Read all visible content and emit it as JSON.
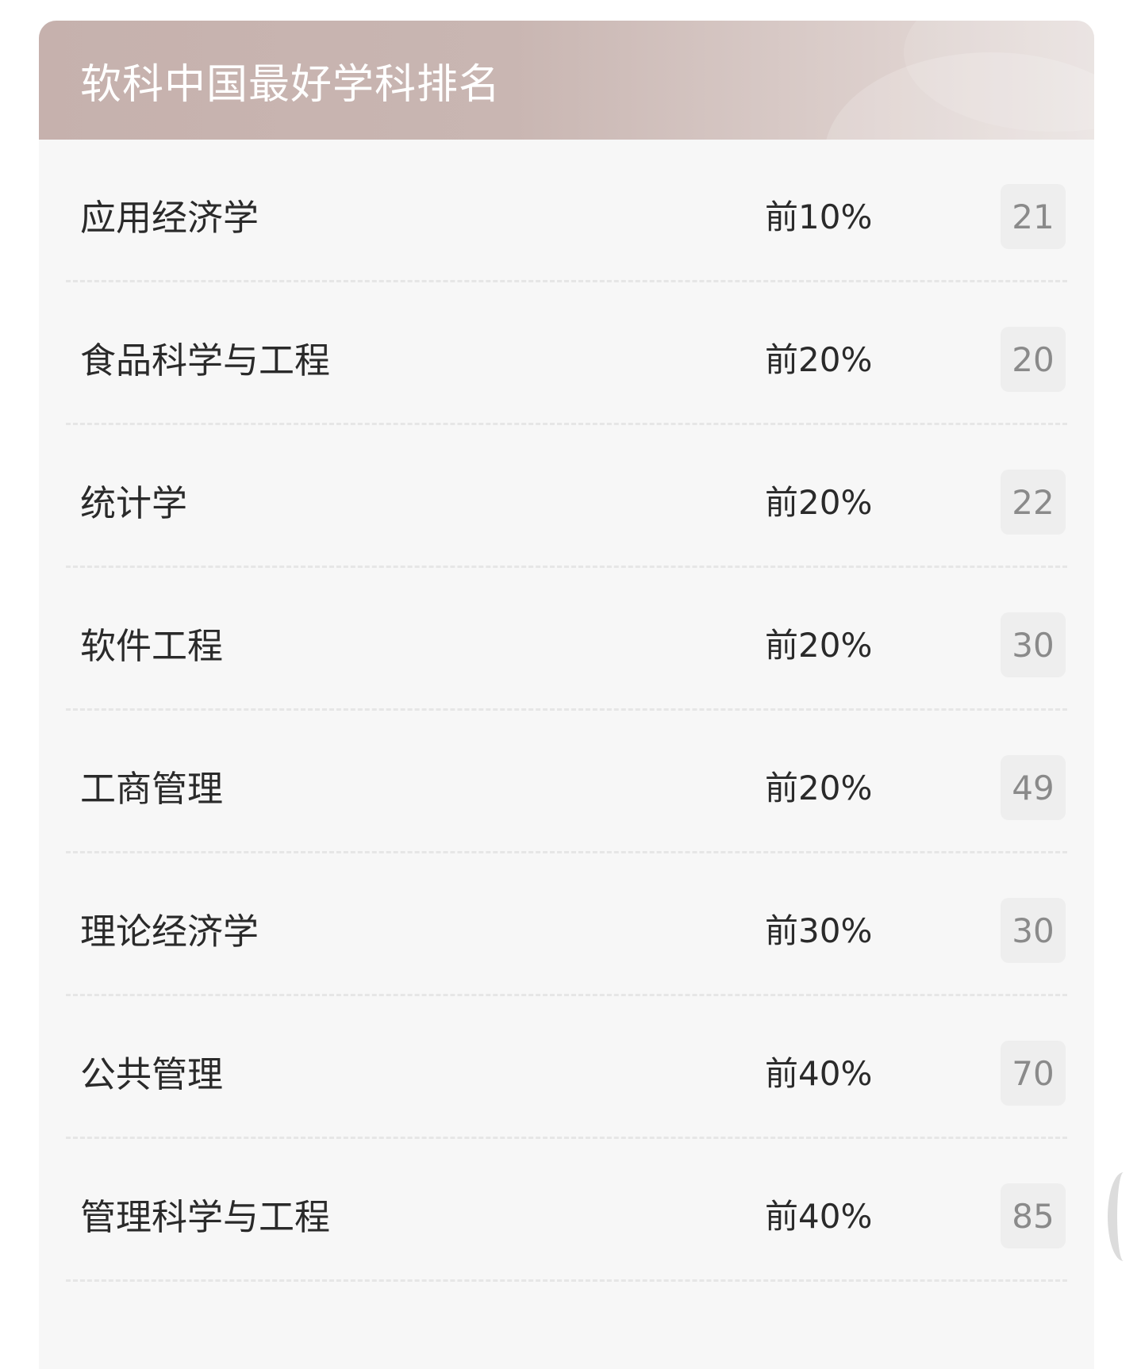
{
  "header": {
    "title": "软科中国最好学科排名"
  },
  "rows": [
    {
      "name": "应用经济学",
      "tier": "前10%",
      "rank": "21"
    },
    {
      "name": "食品科学与工程",
      "tier": "前20%",
      "rank": "20"
    },
    {
      "name": "统计学",
      "tier": "前20%",
      "rank": "22"
    },
    {
      "name": "软件工程",
      "tier": "前20%",
      "rank": "30"
    },
    {
      "name": "工商管理",
      "tier": "前20%",
      "rank": "49"
    },
    {
      "name": "理论经济学",
      "tier": "前30%",
      "rank": "30"
    },
    {
      "name": "公共管理",
      "tier": "前40%",
      "rank": "70"
    },
    {
      "name": "管理科学与工程",
      "tier": "前40%",
      "rank": "85"
    }
  ],
  "colors": {
    "header": "#c6b1ad",
    "card": "#f7f7f7",
    "badge": "#eeeeee"
  }
}
